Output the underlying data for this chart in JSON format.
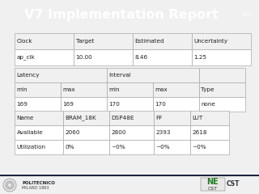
{
  "title": "V7 Implementation Report",
  "title_page": "102",
  "bg_header": "#1c2340",
  "bg_main": "#ffffff",
  "bg_body": "#f0f0f0",
  "header_text_color": "#ffffff",
  "table_header_bg": "#f0f0f0",
  "table_cell_bg": "#ffffff",
  "table_border": "#aaaaaa",
  "table1_headers": [
    "Clock",
    "Target",
    "Estimated",
    "Uncertainty"
  ],
  "table1_rows": [
    [
      "ap_clk",
      "10.00",
      "8.46",
      "1.25"
    ]
  ],
  "table2_row1": [
    [
      "Latency",
      2
    ],
    [
      "Interval",
      2
    ],
    [
      "",
      1
    ]
  ],
  "table2_row2": [
    "min",
    "max",
    "min",
    "max",
    "Type"
  ],
  "table2_rows": [
    [
      "169",
      "169",
      "170",
      "170",
      "none"
    ]
  ],
  "table3_headers": [
    "Name",
    "BRAM_18K",
    "DSP48E",
    "FF",
    "LUT"
  ],
  "table3_rows": [
    [
      "Available",
      "2060",
      "2800",
      "2393",
      "2618"
    ],
    [
      "Utilization",
      "0%",
      "~0%",
      "~0%",
      "~0%"
    ]
  ]
}
